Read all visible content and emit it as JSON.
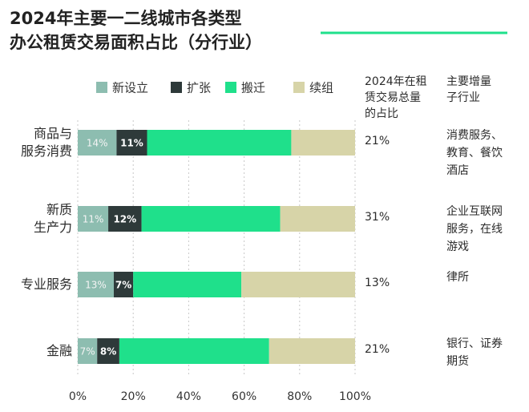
{
  "chart_data": {
    "type": "stacked-barh",
    "title": "2024年主要一二线城市各类型\n办公租赁交易面积占比（分行业）",
    "categories": [
      "商品与\n服务消费",
      "新质\n生产力",
      "专业服务",
      "金融"
    ],
    "series": [
      {
        "name": "新设立",
        "color": "#8dbdb0",
        "values": [
          14,
          11,
          13,
          7
        ],
        "value_labels": [
          "14%",
          "11%",
          "13%",
          "7%"
        ]
      },
      {
        "name": "扩张",
        "color": "#2e3a3a",
        "values": [
          11,
          12,
          7,
          8
        ],
        "value_labels": [
          "11%",
          "12%",
          "7%",
          "8%"
        ]
      },
      {
        "name": "搬迁",
        "color": "#1fe08b",
        "values": [
          52,
          50,
          39,
          54
        ]
      },
      {
        "name": "续组",
        "color": "#d7d4a8",
        "values": [
          23,
          27,
          41,
          31
        ]
      }
    ],
    "xlim": [
      0,
      100
    ],
    "xticks": [
      {
        "value": 0,
        "label": "0%"
      },
      {
        "value": 20,
        "label": "20%"
      },
      {
        "value": 40,
        "label": "40%"
      },
      {
        "value": 60,
        "label": "60%"
      },
      {
        "value": 80,
        "label": "80%"
      },
      {
        "value": 100,
        "label": "100%"
      }
    ],
    "grid": true,
    "table": {
      "headers": [
        "2024年在租\n赁交易总量\n的占比",
        "主要增量\n子行业"
      ],
      "shares": [
        "21%",
        "31%",
        "13%",
        "21%"
      ],
      "sub_industries": [
        "消费服务、\n教育、餐饮\n酒店",
        "企业互联网\n服务，在线\n游戏",
        "律所",
        "银行、证券\n期货"
      ]
    }
  }
}
